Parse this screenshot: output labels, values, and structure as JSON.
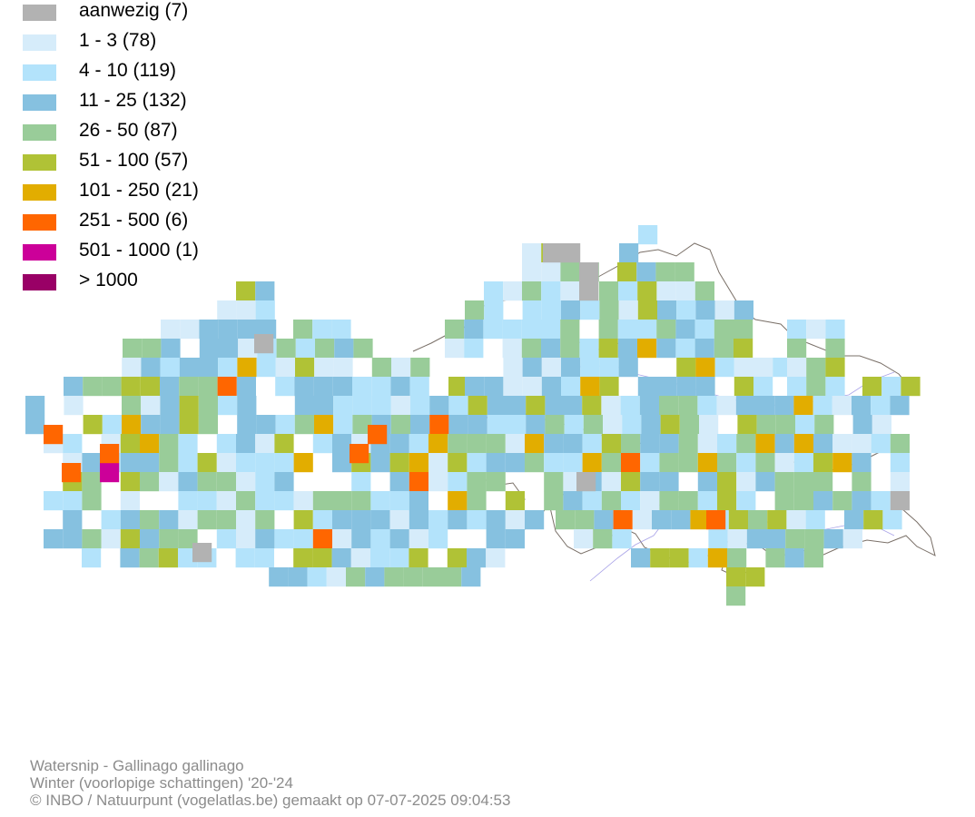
{
  "legend": {
    "items": [
      {
        "label": "aanwezig (7)",
        "color": "#b2b2b2"
      },
      {
        "label": "1 - 3 (78)",
        "color": "#d6ecfa"
      },
      {
        "label": "4 - 10 (119)",
        "color": "#b3e3fb"
      },
      {
        "label": "11 - 25 (132)",
        "color": "#86c1e0"
      },
      {
        "label": "26 - 50 (87)",
        "color": "#99cc99"
      },
      {
        "label": "51 - 100 (57)",
        "color": "#b0c236"
      },
      {
        "label": "101 - 250 (21)",
        "color": "#e2ad00"
      },
      {
        "label": "251 - 500 (6)",
        "color": "#ff6600"
      },
      {
        "label": "501 - 1000 (1)",
        "color": "#cc0099"
      },
      {
        "label": "> 1000",
        "color": "#990066"
      }
    ]
  },
  "footer": {
    "species": "Watersnip - Gallinago gallinago",
    "season": "Winter (voorlopige schattingen) '20-'24",
    "credit": "© INBO / Natuurpunt (vogelatlas.be) gemaakt op 07-07-2025 09:04:53"
  },
  "colors": {
    "border": "#7a7068",
    "river": "#a9a3e8",
    "footer_text": "#8c8c8c"
  }
}
